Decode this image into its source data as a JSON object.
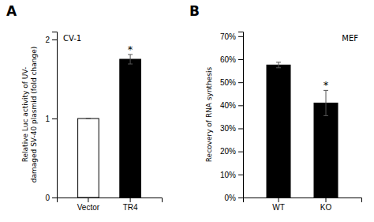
{
  "chart_data": [
    {
      "type": "bar",
      "title": "A",
      "categories": [
        "Vector",
        "TR4"
      ],
      "values": [
        1.0,
        1.75
      ],
      "errors": [
        0.0,
        0.06
      ],
      "colors": [
        "white",
        "black"
      ],
      "y_label": "Relative Luc activity of UV-\ndamaged SV-40 plasmid (fold change)",
      "ylim": [
        0,
        2.1
      ],
      "yticks": [
        0,
        1,
        2
      ],
      "annotations": [
        {
          "text": "CV-1"
        },
        {
          "text": "*",
          "x": "TR4"
        }
      ]
    },
    {
      "type": "bar",
      "title": "B",
      "categories": [
        "WT",
        "KO"
      ],
      "values": [
        0.575,
        0.41
      ],
      "errors": [
        0.012,
        0.055
      ],
      "colors": [
        "black",
        "black"
      ],
      "y_label": "Recovery of RNA synthesis",
      "ylim": [
        0,
        0.72
      ],
      "yticks": [
        {
          "value": 0.0,
          "label": "0%"
        },
        {
          "value": 0.1,
          "label": "10%"
        },
        {
          "value": 0.2,
          "label": "20%"
        },
        {
          "value": 0.3,
          "label": "30%"
        },
        {
          "value": 0.4,
          "label": "40%"
        },
        {
          "value": 0.5,
          "label": "50%"
        },
        {
          "value": 0.6,
          "label": "60%"
        },
        {
          "value": 0.7,
          "label": "70%"
        }
      ],
      "annotations": [
        {
          "text": "MEF"
        },
        {
          "text": "*",
          "x": "KO"
        }
      ]
    }
  ]
}
